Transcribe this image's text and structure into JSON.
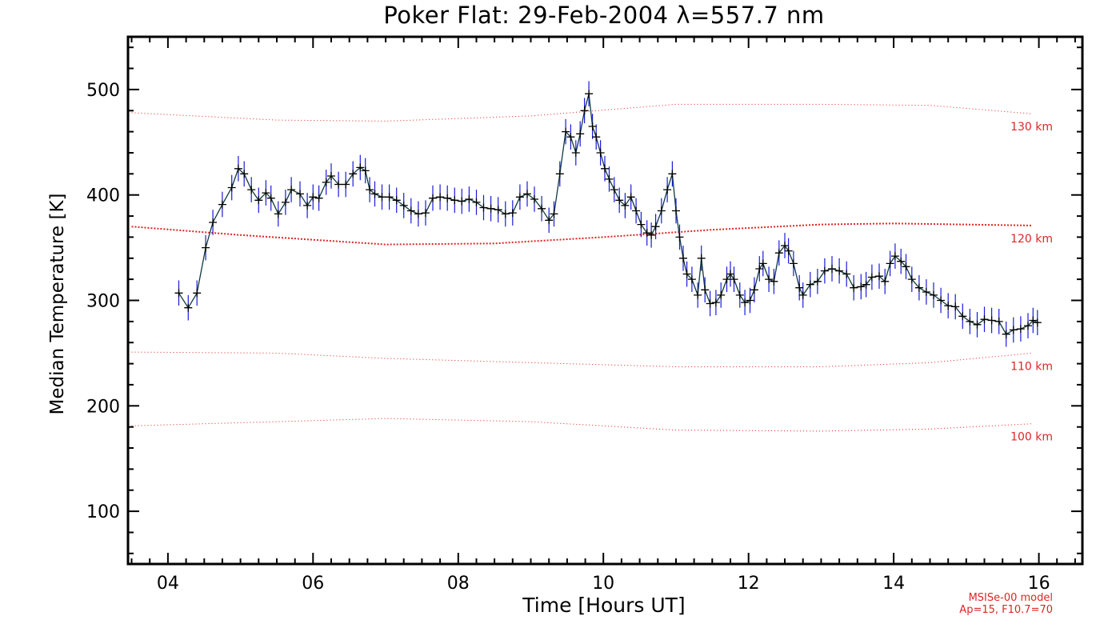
{
  "chart_data": {
    "type": "line",
    "title": "Poker Flat: 29-Feb-2004 λ=557.7 nm",
    "xlabel": "Time [Hours UT]",
    "ylabel": "Median Temperature [K]",
    "xlim": [
      3.45,
      16.6
    ],
    "ylim": [
      50,
      550
    ],
    "xticks": [
      4,
      6,
      8,
      10,
      12,
      14,
      16
    ],
    "xtick_labels": [
      "04",
      "06",
      "08",
      "10",
      "12",
      "14",
      "16"
    ],
    "yticks": [
      100,
      200,
      300,
      400,
      500
    ],
    "ytick_labels": [
      "100",
      "200",
      "300",
      "400",
      "500"
    ],
    "grid": false,
    "colors": {
      "series": "#000000",
      "errorbars": "#1a1adc",
      "model": "#e02424",
      "axis": "#000000"
    },
    "series": [
      {
        "name": "Median Temperature",
        "errorbar_halfwidth": 12,
        "x": [
          4.15,
          4.28,
          4.4,
          4.52,
          4.62,
          4.75,
          4.88,
          4.97,
          5.05,
          5.15,
          5.25,
          5.35,
          5.42,
          5.52,
          5.62,
          5.7,
          5.82,
          5.92,
          6.0,
          6.08,
          6.18,
          6.25,
          6.35,
          6.45,
          6.55,
          6.65,
          6.72,
          6.78,
          6.85,
          6.95,
          7.05,
          7.15,
          7.25,
          7.35,
          7.45,
          7.55,
          7.65,
          7.75,
          7.85,
          7.95,
          8.05,
          8.15,
          8.25,
          8.35,
          8.45,
          8.55,
          8.65,
          8.75,
          8.85,
          8.95,
          9.05,
          9.15,
          9.25,
          9.32,
          9.4,
          9.48,
          9.55,
          9.62,
          9.68,
          9.74,
          9.8,
          9.85,
          9.9,
          9.96,
          10.02,
          10.08,
          10.15,
          10.22,
          10.3,
          10.38,
          10.45,
          10.52,
          10.6,
          10.66,
          10.72,
          10.8,
          10.88,
          10.95,
          11.0,
          11.05,
          11.1,
          11.15,
          11.22,
          11.3,
          11.35,
          11.4,
          11.47,
          11.55,
          11.62,
          11.7,
          11.75,
          11.8,
          11.88,
          11.95,
          12.02,
          12.08,
          12.15,
          12.2,
          12.28,
          12.35,
          12.42,
          12.5,
          12.55,
          12.62,
          12.7,
          12.75,
          12.85,
          12.95,
          13.05,
          13.15,
          13.25,
          13.35,
          13.45,
          13.55,
          13.62,
          13.7,
          13.8,
          13.88,
          13.95,
          14.02,
          14.1,
          14.17,
          14.25,
          14.35,
          14.45,
          14.55,
          14.65,
          14.75,
          14.85,
          14.95,
          15.05,
          15.15,
          15.25,
          15.35,
          15.45,
          15.55,
          15.65,
          15.75,
          15.85,
          15.92,
          15.98
        ],
        "y": [
          307,
          293,
          307,
          350,
          374,
          391,
          407,
          425,
          420,
          405,
          395,
          402,
          397,
          382,
          393,
          405,
          401,
          390,
          398,
          397,
          412,
          418,
          410,
          410,
          420,
          426,
          423,
          405,
          401,
          398,
          398,
          395,
          390,
          385,
          382,
          383,
          397,
          398,
          397,
          395,
          394,
          396,
          393,
          388,
          387,
          386,
          382,
          383,
          398,
          401,
          396,
          387,
          376,
          382,
          420,
          460,
          455,
          440,
          458,
          480,
          496,
          465,
          455,
          440,
          425,
          415,
          405,
          395,
          390,
          398,
          385,
          372,
          364,
          362,
          370,
          385,
          405,
          420,
          385,
          360,
          340,
          325,
          320,
          305,
          340,
          310,
          297,
          298,
          305,
          320,
          325,
          320,
          305,
          298,
          300,
          310,
          330,
          335,
          320,
          318,
          345,
          352,
          347,
          335,
          312,
          305,
          315,
          318,
          328,
          330,
          328,
          325,
          312,
          313,
          315,
          322,
          323,
          318,
          335,
          342,
          337,
          332,
          320,
          312,
          308,
          305,
          300,
          295,
          294,
          285,
          280,
          277,
          282,
          281,
          280,
          268,
          272,
          273,
          276,
          281,
          279
        ]
      }
    ],
    "model_curves": [
      {
        "name": "130 km",
        "x": [
          3.5,
          5.5,
          7.0,
          9.0,
          11.0,
          13.0,
          14.5,
          15.9
        ],
        "y": [
          478,
          471,
          470,
          475,
          486,
          486,
          485,
          477
        ]
      },
      {
        "name": "120 km",
        "x": [
          3.5,
          5.0,
          7.0,
          8.5,
          10.0,
          11.5,
          13.0,
          14.0,
          15.9
        ],
        "y": [
          370,
          362,
          353,
          354,
          360,
          367,
          372,
          373,
          371
        ]
      },
      {
        "name": "110 km",
        "x": [
          3.5,
          5.5,
          7.0,
          9.0,
          11.0,
          13.0,
          14.5,
          15.9
        ],
        "y": [
          251,
          250,
          245,
          241,
          237,
          237,
          241,
          250
        ]
      },
      {
        "name": "100 km",
        "x": [
          3.5,
          5.5,
          7.0,
          9.0,
          11.0,
          13.0,
          14.5,
          15.9
        ],
        "y": [
          181,
          185,
          188,
          185,
          177,
          176,
          178,
          183
        ]
      }
    ],
    "annotations": [
      "130 km",
      "120 km",
      "110 km",
      "100 km"
    ],
    "model_note": [
      "MSISe-00 model",
      "Ap=15, F10.7=70"
    ]
  }
}
